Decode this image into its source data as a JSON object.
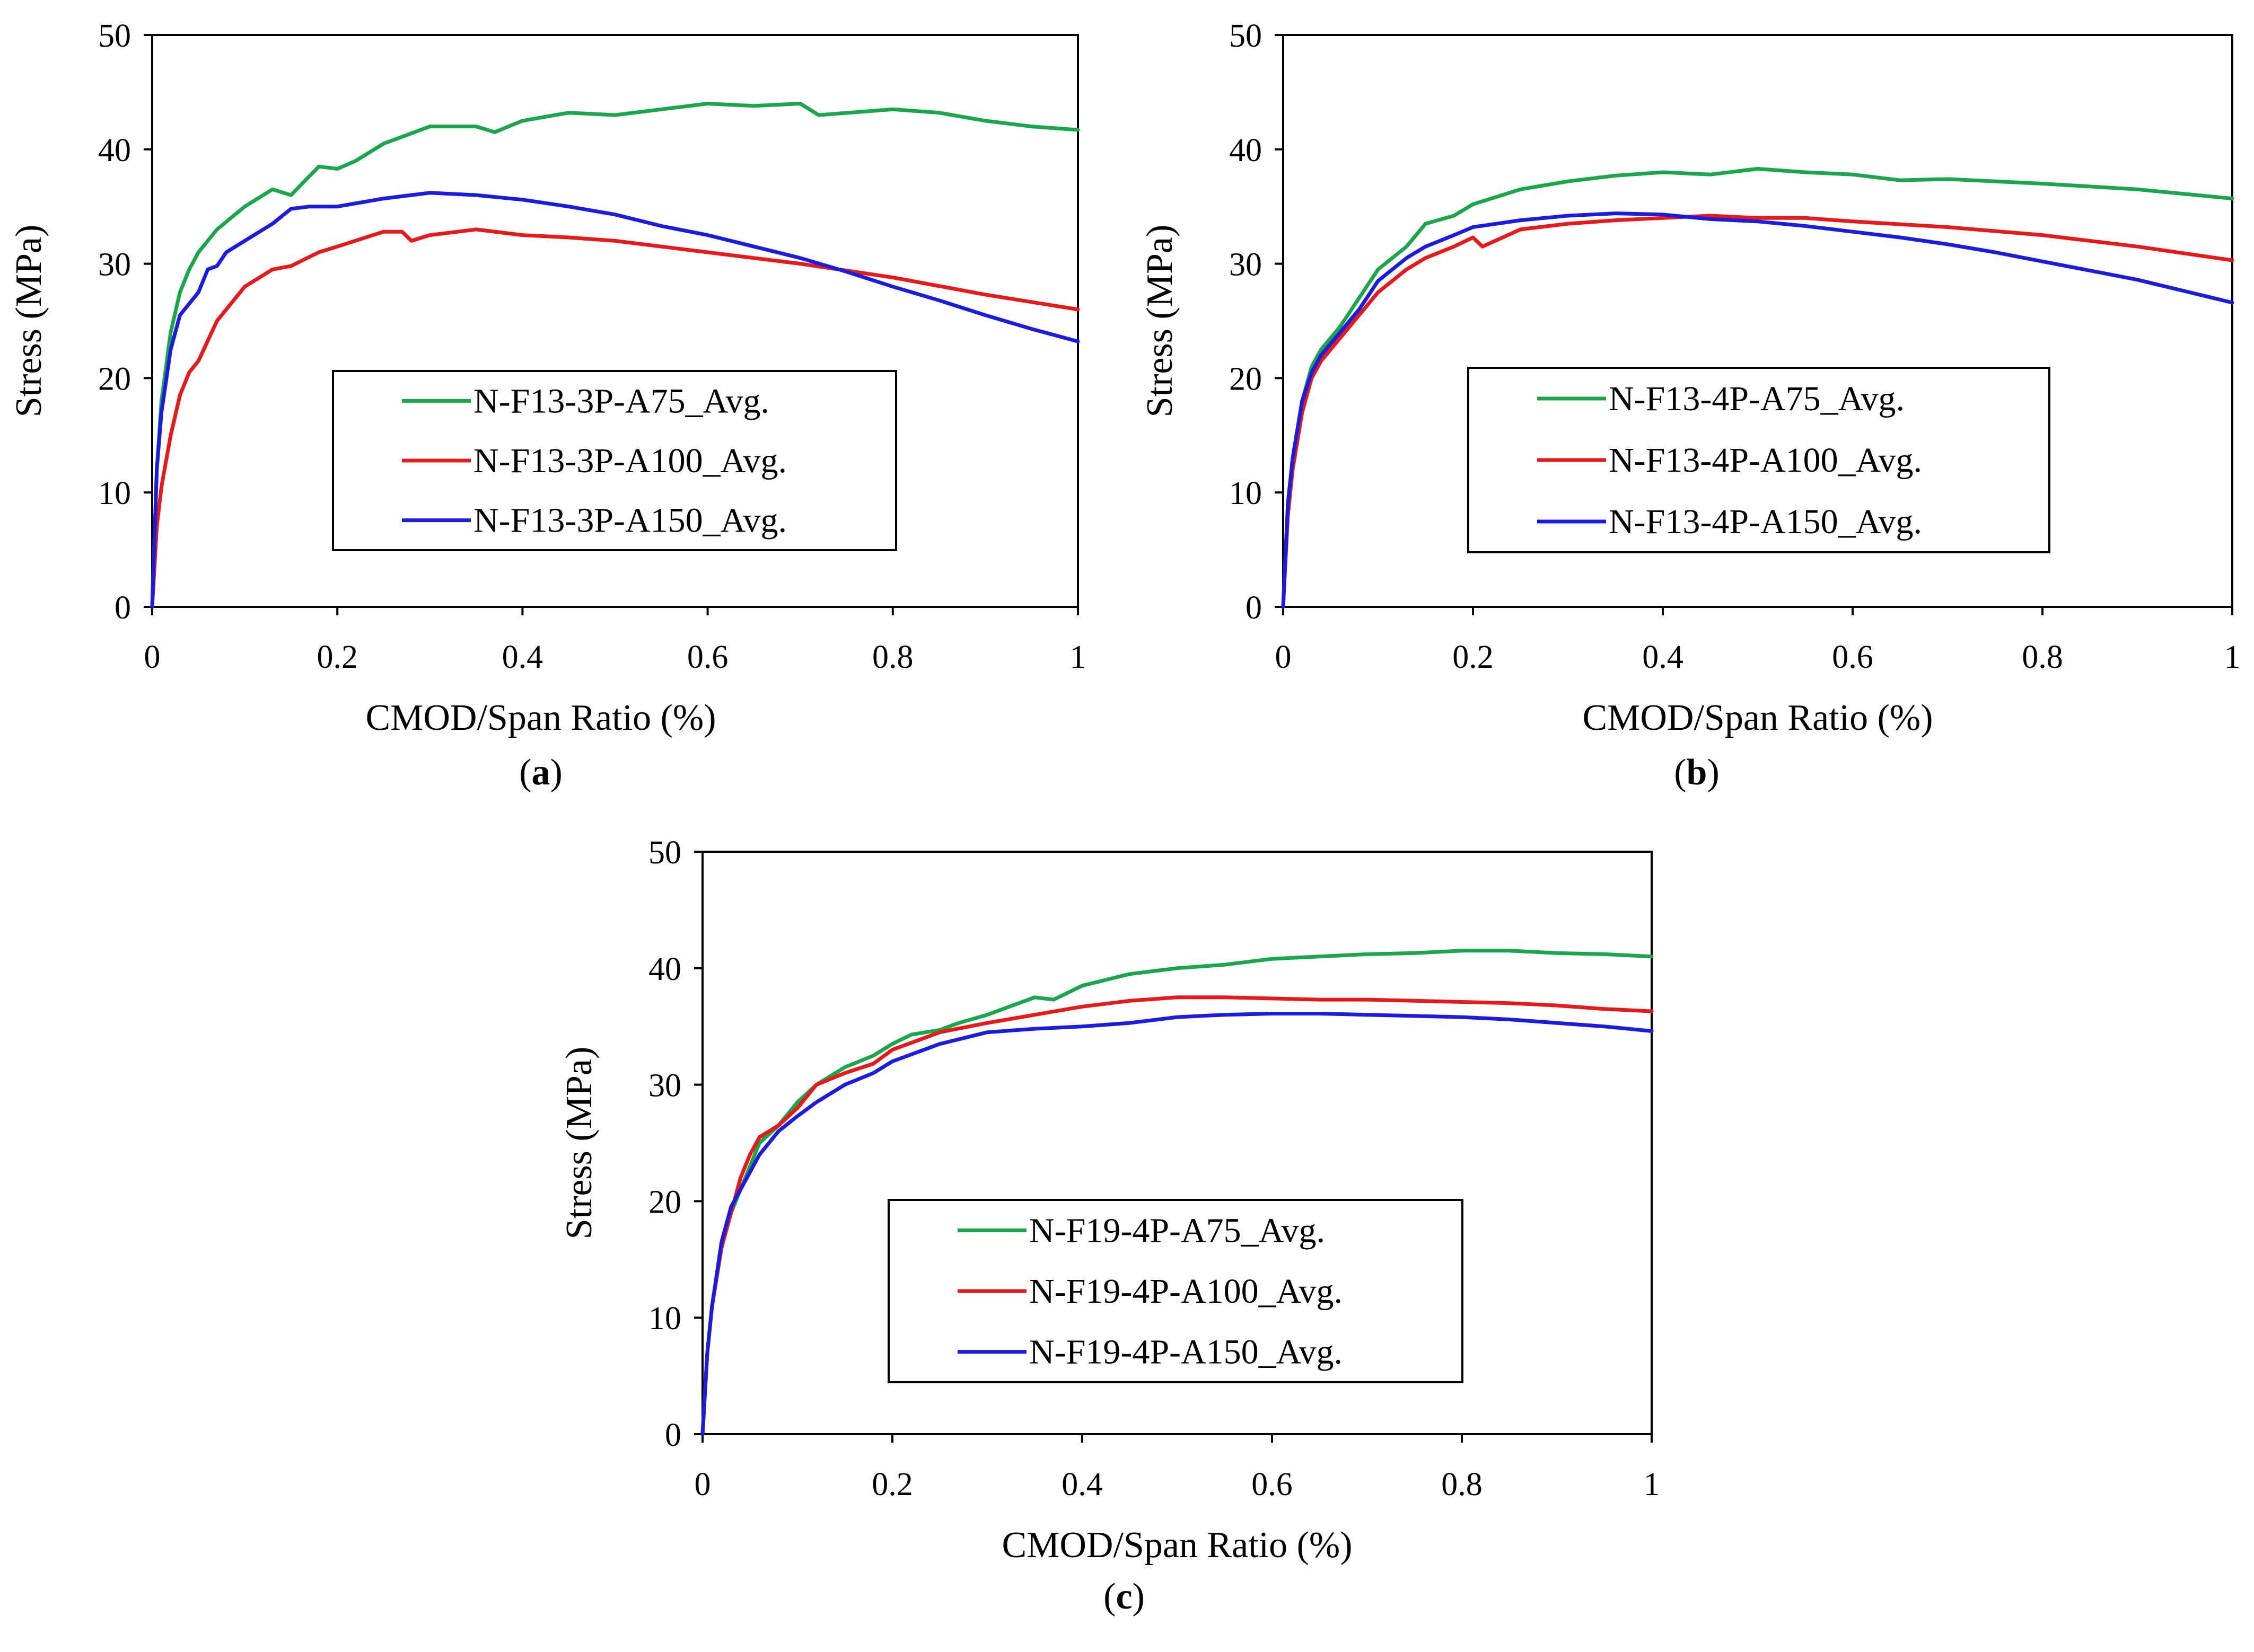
{
  "chart_data": [
    {
      "type": "line",
      "panel": "a",
      "caption_letter": "a",
      "title": "",
      "xlabel": "CMOD/Span Ratio (%)",
      "ylabel": "Stress (MPa)",
      "xlim": [
        0,
        1
      ],
      "ylim": [
        0,
        50
      ],
      "xticks": [
        "0",
        "0.2",
        "0.4",
        "0.6",
        "0.8",
        "1"
      ],
      "yticks": [
        "0",
        "10",
        "20",
        "30",
        "40",
        "50"
      ],
      "grid": false,
      "legend_position": "center",
      "series": [
        {
          "name": "N-F13-3P-A75_Avg.",
          "color": "#1aa64b",
          "x": [
            0,
            0.005,
            0.01,
            0.02,
            0.03,
            0.04,
            0.05,
            0.07,
            0.1,
            0.13,
            0.15,
            0.18,
            0.2,
            0.22,
            0.25,
            0.3,
            0.35,
            0.37,
            0.4,
            0.45,
            0.5,
            0.55,
            0.6,
            0.65,
            0.7,
            0.72,
            0.8,
            0.85,
            0.9,
            0.95,
            1.0
          ],
          "y": [
            0,
            12,
            18,
            24,
            27.5,
            29.5,
            31,
            33,
            35,
            36.5,
            36,
            38.5,
            38.3,
            39,
            40.5,
            42,
            42,
            41.5,
            42.5,
            43.2,
            43,
            43.5,
            44,
            43.8,
            44,
            43,
            43.5,
            43.2,
            42.5,
            42,
            41.7
          ]
        },
        {
          "name": "N-F13-3P-A100_Avg.",
          "color": "#e8191b",
          "x": [
            0,
            0.005,
            0.01,
            0.02,
            0.03,
            0.04,
            0.05,
            0.07,
            0.1,
            0.13,
            0.15,
            0.18,
            0.2,
            0.25,
            0.27,
            0.28,
            0.3,
            0.35,
            0.4,
            0.45,
            0.5,
            0.55,
            0.6,
            0.7,
            0.8,
            0.9,
            1.0
          ],
          "y": [
            0,
            7,
            10.5,
            15,
            18.5,
            20.5,
            21.5,
            25,
            28,
            29.5,
            29.8,
            31,
            31.5,
            32.8,
            32.8,
            32,
            32.5,
            33,
            32.5,
            32.3,
            32,
            31.5,
            31,
            30,
            28.8,
            27.3,
            26
          ]
        },
        {
          "name": "N-F13-3P-A150_Avg.",
          "color": "#1c1ce0",
          "x": [
            0,
            0.005,
            0.01,
            0.02,
            0.03,
            0.04,
            0.05,
            0.06,
            0.07,
            0.08,
            0.1,
            0.13,
            0.15,
            0.17,
            0.2,
            0.25,
            0.3,
            0.35,
            0.4,
            0.45,
            0.5,
            0.55,
            0.6,
            0.65,
            0.7,
            0.75,
            0.8,
            0.85,
            0.9,
            0.95,
            1.0
          ],
          "y": [
            0,
            12,
            17,
            22.5,
            25.5,
            26.5,
            27.5,
            29.5,
            29.8,
            31,
            32,
            33.5,
            34.8,
            35,
            35,
            35.7,
            36.2,
            36,
            35.6,
            35,
            34.3,
            33.3,
            32.5,
            31.5,
            30.5,
            29.3,
            28,
            26.8,
            25.5,
            24.3,
            23.2
          ]
        }
      ]
    },
    {
      "type": "line",
      "panel": "b",
      "caption_letter": "b",
      "title": "",
      "xlabel": "CMOD/Span Ratio (%)",
      "ylabel": "Stress (MPa)",
      "xlim": [
        0,
        1
      ],
      "ylim": [
        0,
        50
      ],
      "xticks": [
        "0",
        "0.2",
        "0.4",
        "0.6",
        "0.8",
        "1"
      ],
      "yticks": [
        "0",
        "10",
        "20",
        "30",
        "40",
        "50"
      ],
      "grid": false,
      "legend_position": "center",
      "series": [
        {
          "name": "N-F13-4P-A75_Avg.",
          "color": "#1aa64b",
          "x": [
            0,
            0.005,
            0.01,
            0.02,
            0.03,
            0.04,
            0.06,
            0.08,
            0.1,
            0.13,
            0.15,
            0.18,
            0.2,
            0.25,
            0.3,
            0.35,
            0.4,
            0.45,
            0.5,
            0.55,
            0.6,
            0.65,
            0.7,
            0.8,
            0.9,
            1.0
          ],
          "y": [
            0,
            9,
            13,
            18,
            21,
            22.5,
            24.5,
            27,
            29.5,
            31.5,
            33.5,
            34.2,
            35.2,
            36.5,
            37.2,
            37.7,
            38,
            37.8,
            38.3,
            38,
            37.8,
            37.3,
            37.4,
            37,
            36.5,
            35.7
          ]
        },
        {
          "name": "N-F13-4P-A100_Avg.",
          "color": "#e8191b",
          "x": [
            0,
            0.005,
            0.01,
            0.02,
            0.03,
            0.04,
            0.06,
            0.08,
            0.1,
            0.13,
            0.15,
            0.18,
            0.2,
            0.21,
            0.25,
            0.3,
            0.35,
            0.4,
            0.45,
            0.5,
            0.55,
            0.6,
            0.7,
            0.8,
            0.9,
            1.0
          ],
          "y": [
            0,
            8,
            12,
            17,
            20,
            21.5,
            23.5,
            25.5,
            27.5,
            29.5,
            30.5,
            31.5,
            32.3,
            31.5,
            33,
            33.5,
            33.8,
            34,
            34.2,
            34,
            34,
            33.7,
            33.2,
            32.5,
            31.5,
            30.3
          ]
        },
        {
          "name": "N-F13-4P-A150_Avg.",
          "color": "#1c1ce0",
          "x": [
            0,
            0.005,
            0.01,
            0.02,
            0.03,
            0.04,
            0.06,
            0.08,
            0.1,
            0.13,
            0.15,
            0.18,
            0.2,
            0.25,
            0.3,
            0.35,
            0.4,
            0.45,
            0.5,
            0.55,
            0.6,
            0.65,
            0.7,
            0.75,
            0.8,
            0.85,
            0.9,
            0.95,
            1.0
          ],
          "y": [
            0,
            9,
            13,
            18,
            20.5,
            22,
            24,
            26,
            28.5,
            30.5,
            31.5,
            32.5,
            33.2,
            33.8,
            34.2,
            34.4,
            34.3,
            33.9,
            33.7,
            33.3,
            32.8,
            32.3,
            31.7,
            31,
            30.2,
            29.4,
            28.6,
            27.6,
            26.6
          ]
        }
      ]
    },
    {
      "type": "line",
      "panel": "c",
      "caption_letter": "c",
      "title": "",
      "xlabel": "CMOD/Span Ratio (%)",
      "ylabel": "Stress (MPa)",
      "xlim": [
        0,
        1
      ],
      "ylim": [
        0,
        50
      ],
      "xticks": [
        "0",
        "0.2",
        "0.4",
        "0.6",
        "0.8",
        "1"
      ],
      "yticks": [
        "0",
        "10",
        "20",
        "30",
        "40",
        "50"
      ],
      "grid": false,
      "legend_position": "bottom-center",
      "series": [
        {
          "name": "N-F19-4P-A75_Avg.",
          "color": "#1aa64b",
          "x": [
            0,
            0.005,
            0.01,
            0.02,
            0.03,
            0.04,
            0.05,
            0.06,
            0.08,
            0.1,
            0.12,
            0.15,
            0.18,
            0.2,
            0.22,
            0.25,
            0.27,
            0.3,
            0.35,
            0.37,
            0.4,
            0.45,
            0.5,
            0.55,
            0.6,
            0.65,
            0.7,
            0.75,
            0.8,
            0.85,
            0.9,
            0.95,
            1.0
          ],
          "y": [
            0,
            7,
            11,
            16,
            19,
            21,
            23,
            25,
            26.5,
            28.5,
            30,
            31.5,
            32.5,
            33.5,
            34.3,
            34.7,
            35.3,
            36,
            37.5,
            37.3,
            38.5,
            39.5,
            40,
            40.3,
            40.8,
            41,
            41.2,
            41.3,
            41.5,
            41.5,
            41.3,
            41.2,
            41
          ]
        },
        {
          "name": "N-F19-4P-A100_Avg.",
          "color": "#e8191b",
          "x": [
            0,
            0.005,
            0.01,
            0.02,
            0.03,
            0.04,
            0.05,
            0.06,
            0.08,
            0.1,
            0.12,
            0.15,
            0.18,
            0.2,
            0.25,
            0.3,
            0.35,
            0.4,
            0.45,
            0.5,
            0.55,
            0.6,
            0.65,
            0.7,
            0.75,
            0.8,
            0.85,
            0.9,
            0.95,
            1.0
          ],
          "y": [
            0,
            7,
            11,
            16,
            19,
            22,
            24,
            25.5,
            26.5,
            28,
            30,
            31,
            31.8,
            33,
            34.5,
            35.3,
            36,
            36.7,
            37.2,
            37.5,
            37.5,
            37.4,
            37.3,
            37.3,
            37.2,
            37.1,
            37,
            36.8,
            36.5,
            36.3
          ]
        },
        {
          "name": "N-F19-4P-A150_Avg.",
          "color": "#1c1ce0",
          "x": [
            0,
            0.005,
            0.01,
            0.02,
            0.03,
            0.04,
            0.05,
            0.06,
            0.08,
            0.1,
            0.12,
            0.15,
            0.18,
            0.2,
            0.25,
            0.3,
            0.35,
            0.4,
            0.45,
            0.5,
            0.55,
            0.6,
            0.65,
            0.7,
            0.75,
            0.8,
            0.85,
            0.9,
            0.95,
            1.0
          ],
          "y": [
            0,
            7,
            11,
            16.5,
            19.5,
            21,
            22.5,
            24,
            26,
            27.3,
            28.5,
            30,
            31,
            32,
            33.5,
            34.5,
            34.8,
            35,
            35.3,
            35.8,
            36,
            36.1,
            36.1,
            36,
            35.9,
            35.8,
            35.6,
            35.3,
            35,
            34.6
          ]
        }
      ]
    }
  ]
}
